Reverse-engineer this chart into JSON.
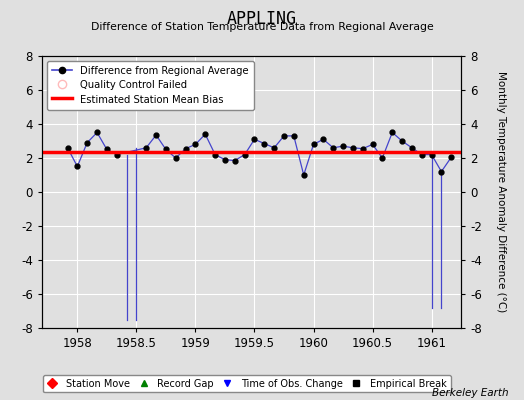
{
  "title": "APPLING",
  "subtitle": "Difference of Station Temperature Data from Regional Average",
  "ylabel": "Monthly Temperature Anomaly Difference (°C)",
  "credit": "Berkeley Earth",
  "xlim": [
    1957.7,
    1961.25
  ],
  "ylim": [
    -8,
    8
  ],
  "yticks": [
    -8,
    -6,
    -4,
    -2,
    0,
    2,
    4,
    6,
    8
  ],
  "xticks": [
    1958,
    1958.5,
    1959,
    1959.5,
    1960,
    1960.5,
    1961
  ],
  "background_color": "#e0e0e0",
  "plot_bg_color": "#e0e0e0",
  "grid_color": "#ffffff",
  "line_color": "#4444cc",
  "marker_color": "#000000",
  "bias_color": "#ff0000",
  "bias_value": 2.35,
  "x_data": [
    1957.917,
    1958.0,
    1958.083,
    1958.167,
    1958.25,
    1958.333,
    1958.583,
    1958.667,
    1958.75,
    1958.833,
    1958.917,
    1959.0,
    1959.083,
    1959.167,
    1959.25,
    1959.333,
    1959.417,
    1959.5,
    1959.583,
    1959.667,
    1959.75,
    1959.833,
    1959.917,
    1960.0,
    1960.083,
    1960.167,
    1960.25,
    1960.333,
    1960.417,
    1960.5,
    1960.583,
    1960.667,
    1960.75,
    1960.833,
    1960.917,
    1961.0,
    1961.083,
    1961.167
  ],
  "y_data": [
    2.6,
    1.5,
    2.9,
    3.5,
    2.5,
    2.2,
    2.6,
    3.35,
    2.5,
    2.0,
    2.55,
    2.8,
    3.4,
    2.2,
    1.9,
    1.85,
    2.2,
    3.1,
    2.85,
    2.6,
    3.3,
    3.3,
    1.0,
    2.8,
    3.1,
    2.6,
    2.7,
    2.6,
    2.55,
    2.8,
    2.0,
    3.5,
    3.0,
    2.6,
    2.2,
    2.2,
    1.2,
    2.05
  ],
  "spike_segments": [
    [
      [
        1958.417,
        1958.417
      ],
      [
        2.2,
        -7.5
      ]
    ],
    [
      [
        1958.5,
        1958.5
      ],
      [
        -7.5,
        2.6
      ]
    ],
    [
      [
        1961.0,
        1961.0
      ],
      [
        2.2,
        -6.8
      ]
    ],
    [
      [
        1961.083,
        1961.083
      ],
      [
        -6.8,
        1.2
      ]
    ]
  ]
}
